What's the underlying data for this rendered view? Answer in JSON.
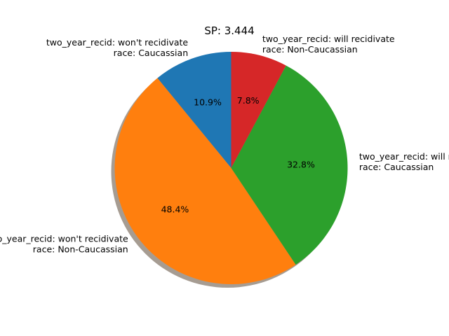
{
  "chart_data": {
    "type": "pie",
    "title": "SP: 3.444",
    "start_angle_deg": 90,
    "direction": "counterclockwise",
    "shadow": true,
    "slices": [
      {
        "label_lines": [
          "two_year_recid: won't recidivate",
          "race: Caucassian"
        ],
        "value": 10.9,
        "pct_label": "10.9%",
        "color": "#1f77b4"
      },
      {
        "label_lines": [
          "two_year_recid: won't recidivate",
          "race: Non-Caucassian"
        ],
        "value": 48.4,
        "pct_label": "48.4%",
        "color": "#ff7f0e"
      },
      {
        "label_lines": [
          "two_year_recid: will recidivate",
          "race: Caucassian"
        ],
        "value": 32.8,
        "pct_label": "32.8%",
        "color": "#2ca02c"
      },
      {
        "label_lines": [
          "two_year_recid: will recidivate",
          "race: Non-Caucassian"
        ],
        "value": 7.8,
        "pct_label": "7.8%",
        "color": "#d62728"
      }
    ]
  }
}
